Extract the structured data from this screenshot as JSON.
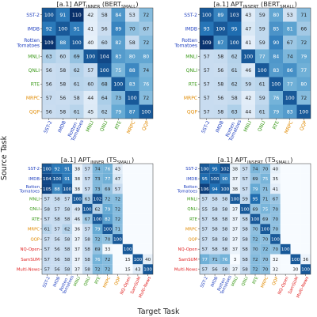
{
  "figure": {
    "ylabel": "Source Task",
    "xlabel": "Target Task",
    "colors": {
      "low": "#f7fbff",
      "high": "#08306b",
      "text_dark": "#222222",
      "text_light": "#ffffff",
      "glue": "#1f3fbf",
      "superglue": "#3c9a1a",
      "other": "#e08a00",
      "generation": "#e02020"
    },
    "value_range": [
      30,
      110
    ]
  },
  "chart_data": [
    {
      "type": "heatmap",
      "title": "[a.1] APT_INNER (BERT_SMALL)",
      "title_parts": {
        "prefix": "[a.1] APT",
        "sub1": "INNER",
        "mid": " (BERT",
        "sub2": "SMALL",
        "suffix": ")"
      },
      "rows": [
        "SST-2",
        "IMDB",
        "Rotten Tomatoes",
        "MNLI",
        "QNLI",
        "RTE",
        "MRPC",
        "QQP"
      ],
      "cols": [
        "SST-2",
        "IMDB",
        "Rotten Tomatoes",
        "MNLI",
        "QNLI",
        "RTE",
        "MRPC",
        "QQP"
      ],
      "row_groups": [
        "glue",
        "glue",
        "glue",
        "superglue",
        "superglue",
        "superglue",
        "other",
        "other"
      ],
      "col_groups": [
        "glue",
        "glue",
        "glue",
        "superglue",
        "superglue",
        "superglue",
        "other",
        "other"
      ],
      "values": [
        [
          100,
          91,
          110,
          42,
          58,
          84,
          53,
          72
        ],
        [
          92,
          100,
          91,
          41,
          56,
          89,
          70,
          67
        ],
        [
          109,
          88,
          100,
          40,
          60,
          82,
          58,
          72
        ],
        [
          63,
          60,
          69,
          100,
          104,
          83,
          80,
          80
        ],
        [
          56,
          58,
          62,
          57,
          100,
          75,
          88,
          74
        ],
        [
          56,
          58,
          61,
          60,
          68,
          100,
          83,
          76
        ],
        [
          57,
          56,
          58,
          44,
          64,
          73,
          100,
          72
        ],
        [
          56,
          58,
          61,
          45,
          62,
          79,
          87,
          100
        ]
      ]
    },
    {
      "type": "heatmap",
      "title": "[a.1] APT_INSERT (BERT_SMALL)",
      "title_parts": {
        "prefix": "[a.1] APT",
        "sub1": "INSERT",
        "mid": " (BERT",
        "sub2": "SMALL",
        "suffix": ")"
      },
      "rows": [
        "SST-2",
        "IMDB",
        "Rotten Tomatoes",
        "MNLI",
        "QNLI",
        "RTE",
        "MRPC",
        "QQP"
      ],
      "cols": [
        "SST-2",
        "IMDB",
        "Rotten Tomatoes",
        "MNLI",
        "QNLI",
        "RTE",
        "MRPC",
        "QQP"
      ],
      "row_groups": [
        "glue",
        "glue",
        "glue",
        "superglue",
        "superglue",
        "superglue",
        "other",
        "other"
      ],
      "col_groups": [
        "glue",
        "glue",
        "glue",
        "superglue",
        "superglue",
        "superglue",
        "other",
        "other"
      ],
      "values": [
        [
          100,
          89,
          103,
          43,
          59,
          80,
          53,
          71
        ],
        [
          93,
          100,
          95,
          47,
          59,
          85,
          81,
          66
        ],
        [
          109,
          87,
          100,
          41,
          59,
          90,
          67,
          72
        ],
        [
          57,
          58,
          62,
          100,
          77,
          84,
          74,
          79
        ],
        [
          57,
          56,
          61,
          46,
          100,
          83,
          86,
          77
        ],
        [
          57,
          58,
          62,
          59,
          61,
          100,
          77,
          80
        ],
        [
          57,
          56,
          58,
          42,
          59,
          76,
          100,
          72
        ],
        [
          57,
          58,
          63,
          44,
          61,
          79,
          83,
          100
        ]
      ]
    },
    {
      "type": "heatmap",
      "title": "[a.1] APT_INNER (T5_SMALL)",
      "title_parts": {
        "prefix": "[a.1] APT",
        "sub1": "INNER",
        "mid": " (T5",
        "sub2": "SMALL",
        "suffix": ")"
      },
      "rows": [
        "SST-2",
        "IMDB",
        "Rotten Tomatoes",
        "MNLI",
        "QNLI",
        "RTE",
        "MRPC",
        "QQP",
        "NQ-Open",
        "SamSUM",
        "Multi-News"
      ],
      "cols": [
        "SST-2",
        "IMDB",
        "Rotten Tomatoes",
        "MNLI",
        "QNLI",
        "RTE",
        "MRPC",
        "QQP",
        "NQ-Open",
        "SamSUM",
        "Multi-News"
      ],
      "row_groups": [
        "glue",
        "glue",
        "glue",
        "superglue",
        "superglue",
        "superglue",
        "other",
        "other",
        "generation",
        "generation",
        "generation"
      ],
      "col_groups": [
        "glue",
        "glue",
        "glue",
        "superglue",
        "superglue",
        "superglue",
        "other",
        "other",
        "generation",
        "generation",
        "generation"
      ],
      "values": [
        [
          100,
          92,
          91,
          38,
          57,
          74,
          76,
          43,
          null,
          null,
          null
        ],
        [
          104,
          100,
          91,
          38,
          57,
          73,
          77,
          47,
          null,
          null,
          null
        ],
        [
          105,
          88,
          100,
          38,
          57,
          73,
          69,
          57,
          null,
          null,
          null
        ],
        [
          57,
          58,
          57,
          100,
          63,
          102,
          72,
          72,
          null,
          null,
          null
        ],
        [
          58,
          57,
          58,
          49,
          100,
          62,
          79,
          72,
          null,
          null,
          null
        ],
        [
          57,
          58,
          58,
          46,
          67,
          100,
          82,
          72,
          null,
          null,
          null
        ],
        [
          61,
          57,
          62,
          36,
          57,
          79,
          100,
          71,
          null,
          null,
          null
        ],
        [
          57,
          56,
          58,
          37,
          58,
          72,
          70,
          100,
          null,
          null,
          null
        ],
        [
          57,
          56,
          58,
          37,
          58,
          69,
          33,
          null,
          100,
          null,
          null
        ],
        [
          57,
          56,
          58,
          37,
          58,
          76,
          72,
          null,
          15,
          100,
          40
        ],
        [
          57,
          56,
          58,
          37,
          58,
          72,
          72,
          null,
          15,
          43,
          100
        ]
      ]
    },
    {
      "type": "heatmap",
      "title": "[a.1] APT_INSERT (T5_SMALL)",
      "title_parts": {
        "prefix": "[a.1] APT",
        "sub1": "INSERT",
        "mid": " (T5",
        "sub2": "SMALL",
        "suffix": ")"
      },
      "rows": [
        "SST-2",
        "IMDB",
        "Rotten Tomatoes",
        "MNLI",
        "QNLI",
        "RTE",
        "MRPC",
        "QQP",
        "NQ-Open",
        "SamSUM",
        "Multi-News"
      ],
      "cols": [
        "SST-2",
        "IMDB",
        "Rotten Tomatoes",
        "MNLI",
        "QNLI",
        "RTE",
        "MRPC",
        "QQP",
        "NQ-Open",
        "SamSUM",
        "Multi-News"
      ],
      "row_groups": [
        "glue",
        "glue",
        "glue",
        "superglue",
        "superglue",
        "superglue",
        "other",
        "other",
        "generation",
        "generation",
        "generation"
      ],
      "col_groups": [
        "glue",
        "glue",
        "glue",
        "superglue",
        "superglue",
        "superglue",
        "other",
        "other",
        "generation",
        "generation",
        "generation"
      ],
      "values": [
        [
          100,
          95,
          102,
          38,
          57,
          74,
          70,
          40,
          null,
          null,
          null
        ],
        [
          95,
          100,
          90,
          37,
          57,
          69,
          75,
          35,
          null,
          null,
          null
        ],
        [
          106,
          94,
          100,
          38,
          57,
          79,
          71,
          41,
          null,
          null,
          null
        ],
        [
          57,
          58,
          58,
          100,
          59,
          95,
          71,
          67,
          null,
          null,
          null
        ],
        [
          55,
          58,
          58,
          37,
          100,
          69,
          75,
          70,
          null,
          null,
          null
        ],
        [
          57,
          58,
          58,
          37,
          58,
          100,
          69,
          70,
          null,
          null,
          null
        ],
        [
          57,
          58,
          58,
          37,
          58,
          70,
          100,
          70,
          null,
          null,
          null
        ],
        [
          57,
          58,
          58,
          37,
          58,
          72,
          70,
          100,
          null,
          null,
          null
        ],
        [
          57,
          58,
          58,
          37,
          58,
          70,
          72,
          70,
          100,
          null,
          null
        ],
        [
          77,
          71,
          76,
          3,
          58,
          72,
          70,
          32,
          null,
          100,
          36
        ],
        [
          57,
          56,
          58,
          37,
          58,
          72,
          70,
          32,
          null,
          30,
          100
        ]
      ]
    }
  ]
}
